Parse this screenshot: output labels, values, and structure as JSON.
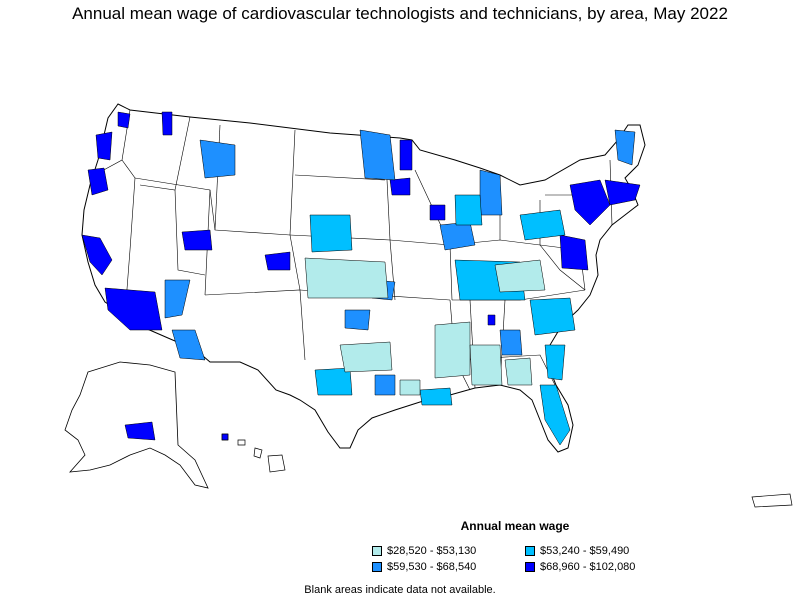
{
  "title": "Annual mean wage of cardiovascular technologists and technicians, by area, May 2022",
  "legend": {
    "title": "Annual mean wage",
    "items": [
      {
        "label": "$28,520 - $53,130",
        "color": "#b2ebeb"
      },
      {
        "label": "$53,240 - $59,490",
        "color": "#00bfff"
      },
      {
        "label": "$59,530 - $68,540",
        "color": "#1e90ff"
      },
      {
        "label": "$68,960 - $102,080",
        "color": "#0000ff"
      }
    ]
  },
  "note": "Blank areas indicate data not available."
}
